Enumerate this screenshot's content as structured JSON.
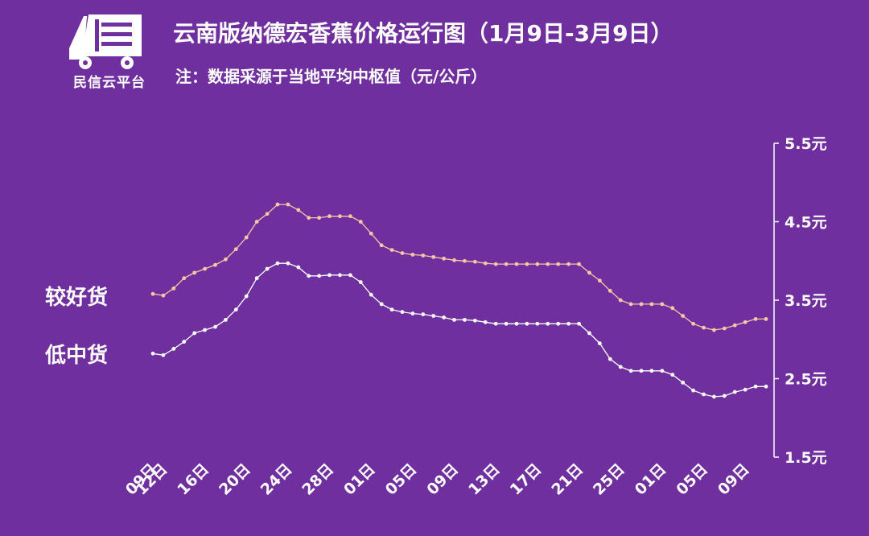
{
  "header": {
    "logo_text": "民信云平台",
    "title": "云南版纳德宏香蕉价格运行图（1月9日-3月9日）",
    "subtitle": "注：数据采源于当地平均中枢值（元/公斤）"
  },
  "colors": {
    "background": "#6f2f9f",
    "series_good": "#f3c8a4",
    "series_low": "#ffffff"
  },
  "icons": [
    "truck-logo-icon"
  ],
  "chart_data": {
    "type": "line",
    "title": "云南版纳德宏香蕉价格运行图（1月9日-3月9日）",
    "ylim": [
      1.5,
      5.5
    ],
    "y_ticks": [
      "1.5元",
      "2.5元",
      "3.5元",
      "4.5元",
      "5.5元"
    ],
    "y_tick_values": [
      1.5,
      2.5,
      3.5,
      4.5,
      5.5
    ],
    "y_axis_position": "right",
    "grid": false,
    "x_ticks": [
      "09日",
      "12日",
      "16日",
      "20日",
      "24日",
      "28日",
      "01日",
      "05日",
      "09日",
      "13日",
      "17日",
      "21日",
      "25日",
      "01日",
      "05日",
      "09日"
    ],
    "x_tick_index": [
      0,
      1,
      5,
      9,
      13,
      17,
      21,
      25,
      29,
      33,
      37,
      41,
      45,
      49,
      53,
      57
    ],
    "series": [
      {
        "name": "较好货",
        "color": "#f3c8a4",
        "values": [
          3.58,
          3.56,
          3.65,
          3.78,
          3.85,
          3.9,
          3.95,
          4.02,
          4.15,
          4.3,
          4.5,
          4.6,
          4.72,
          4.72,
          4.65,
          4.55,
          4.55,
          4.57,
          4.57,
          4.57,
          4.5,
          4.35,
          4.2,
          4.14,
          4.1,
          4.08,
          4.07,
          4.05,
          4.03,
          4.01,
          4.0,
          3.99,
          3.97,
          3.96,
          3.96,
          3.96,
          3.96,
          3.96,
          3.96,
          3.96,
          3.96,
          3.96,
          3.85,
          3.75,
          3.62,
          3.5,
          3.45,
          3.45,
          3.45,
          3.45,
          3.4,
          3.3,
          3.2,
          3.15,
          3.12,
          3.14,
          3.18,
          3.22,
          3.26,
          3.26
        ]
      },
      {
        "name": "低中货",
        "color": "#ffffff",
        "values": [
          2.82,
          2.8,
          2.88,
          2.97,
          3.08,
          3.12,
          3.16,
          3.25,
          3.38,
          3.55,
          3.78,
          3.9,
          3.97,
          3.97,
          3.92,
          3.81,
          3.81,
          3.82,
          3.82,
          3.82,
          3.73,
          3.57,
          3.45,
          3.38,
          3.35,
          3.33,
          3.32,
          3.3,
          3.28,
          3.25,
          3.25,
          3.24,
          3.22,
          3.2,
          3.2,
          3.2,
          3.2,
          3.2,
          3.2,
          3.2,
          3.2,
          3.2,
          3.08,
          2.95,
          2.75,
          2.65,
          2.6,
          2.6,
          2.6,
          2.6,
          2.55,
          2.45,
          2.35,
          2.3,
          2.27,
          2.28,
          2.33,
          2.36,
          2.4,
          2.4
        ]
      }
    ]
  }
}
